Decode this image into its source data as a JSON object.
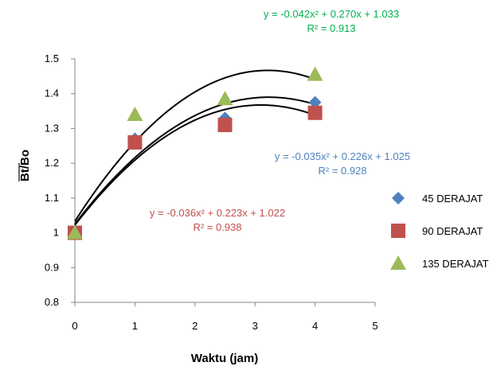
{
  "chart_data": {
    "type": "scatter",
    "xlabel": "Waktu (jam)",
    "ylabel": "Bt/Bo",
    "xlim": [
      0,
      5
    ],
    "ylim": [
      0.8,
      1.5
    ],
    "x_ticks": [
      "0",
      "1",
      "2",
      "3",
      "4",
      "5"
    ],
    "y_ticks": [
      "0.8",
      "0.9",
      "1",
      "1.1",
      "1.2",
      "1.3",
      "1.4",
      "1.5"
    ],
    "grid": false,
    "legend_position": "right",
    "series": [
      {
        "name": "45 DERAJAT",
        "marker": "diamond",
        "color": "#4F81BD",
        "x": [
          0,
          1,
          2.5,
          4
        ],
        "y": [
          1.0,
          1.27,
          1.33,
          1.375
        ],
        "trendline": {
          "a": -0.035,
          "b": 0.226,
          "c": 1.025,
          "equation": "y = -0.035x² + 0.226x + 1.025",
          "r2": "R² = 0.928",
          "color": "#4F81BD"
        }
      },
      {
        "name": "90 DERAJAT",
        "marker": "square",
        "color": "#C0504D",
        "x": [
          0,
          1,
          2.5,
          4
        ],
        "y": [
          1.0,
          1.26,
          1.31,
          1.345
        ],
        "trendline": {
          "a": -0.036,
          "b": 0.223,
          "c": 1.022,
          "equation": "y = -0.036x² + 0.223x + 1.022",
          "r2": "R² = 0.938",
          "color": "#C0504D"
        }
      },
      {
        "name": "135 DERAJAT",
        "marker": "triangle",
        "color": "#9BBB59",
        "x": [
          0,
          1,
          2.5,
          4
        ],
        "y": [
          1.0,
          1.34,
          1.385,
          1.455
        ],
        "trendline": {
          "a": -0.042,
          "b": 0.27,
          "c": 1.033,
          "equation": "y = -0.042x² + 0.270x + 1.033",
          "r2": "R² = 0.913",
          "color": "#00B050"
        }
      }
    ]
  }
}
